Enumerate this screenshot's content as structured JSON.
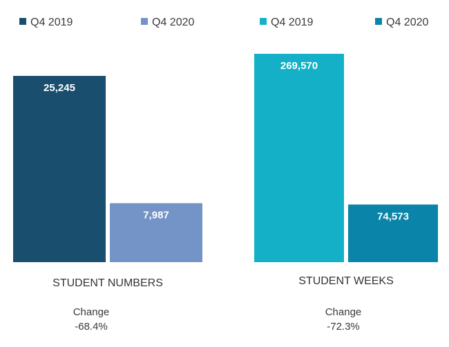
{
  "chart_data": [
    {
      "type": "bar",
      "categories": [
        "STUDENT NUMBERS"
      ],
      "series": [
        {
          "name": "Q4 2019",
          "values": [
            25245
          ],
          "label": "25,245",
          "color": "#1a4e6e"
        },
        {
          "name": "Q4 2020",
          "values": [
            7987
          ],
          "label": "7,987",
          "color": "#7493c6"
        }
      ],
      "legend_position": "top",
      "grid": false,
      "change": {
        "label": "Change",
        "value": "-68.4%"
      }
    },
    {
      "type": "bar",
      "categories": [
        "STUDENT WEEKS"
      ],
      "series": [
        {
          "name": "Q4 2019",
          "values": [
            269570
          ],
          "label": "269,570",
          "color": "#14b0c7"
        },
        {
          "name": "Q4 2020",
          "values": [
            74573
          ],
          "label": "74,573",
          "color": "#0a85a9"
        }
      ],
      "legend_position": "top",
      "grid": false,
      "change": {
        "label": "Change",
        "value": "-72.3%"
      }
    }
  ]
}
